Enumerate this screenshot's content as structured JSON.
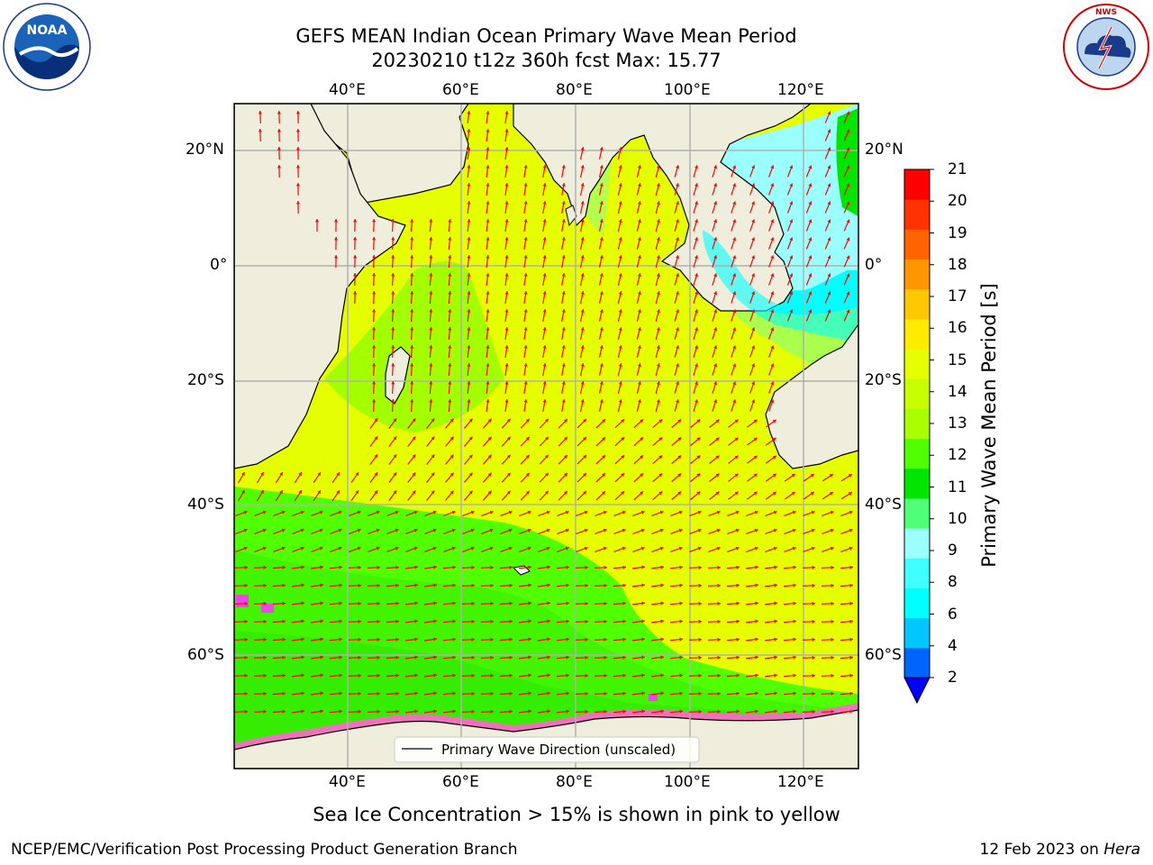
{
  "header": {
    "title_line1": "GEFS MEAN Indian Ocean Primary Wave Mean Period",
    "title_line2": "20230210 t12z 360h fcst   Max: 15.77"
  },
  "logos": {
    "noaa_text": "NOAA",
    "noaa_ring_text": "NATIONAL OCEANIC AND ATMOSPHERIC ADMINISTRATION · U.S. DEPARTMENT OF COMMERCE",
    "nws_ring_text": "NATIONAL WEATHER SERVICE"
  },
  "map": {
    "lon_labels_top": [
      "40°E",
      "60°E",
      "80°E",
      "100°E",
      "120°E"
    ],
    "lon_labels_bottom": [
      "40°E",
      "60°E",
      "80°E",
      "100°E",
      "120°E"
    ],
    "lat_labels_left": [
      "20°N",
      "0°",
      "20°S",
      "40°S",
      "60°S"
    ],
    "lat_labels_right": [
      "20°N",
      "0°",
      "20°S",
      "40°S",
      "60°S"
    ],
    "legend_label": "Primary Wave Direction (unscaled)",
    "land_color": "#efeedc",
    "arrow_color": "#ff0000"
  },
  "colorbar": {
    "label": "Primary Wave Mean Period [s]",
    "levels": [
      "2",
      "4",
      "6",
      "8",
      "9",
      "10",
      "11",
      "12",
      "13",
      "14",
      "15",
      "16",
      "17",
      "18",
      "19",
      "20",
      "21"
    ],
    "colors": [
      "#0064ff",
      "#00c8ff",
      "#00ffff",
      "#40ffff",
      "#9cffff",
      "#50ff78",
      "#00e600",
      "#50ff00",
      "#a8ff00",
      "#c8ff00",
      "#e6ff00",
      "#ffeb00",
      "#ffc800",
      "#ff9600",
      "#ff6400",
      "#ff3200",
      "#ff0000"
    ],
    "extend_color": "#0000ff"
  },
  "caption": "Sea Ice Concentration > 15% is shown in pink to yellow",
  "footer": {
    "left": "NCEP/EMC/Verification Post Processing Product Generation Branch",
    "right_date": "12 Feb 2023 on ",
    "right_host": "Hera"
  }
}
